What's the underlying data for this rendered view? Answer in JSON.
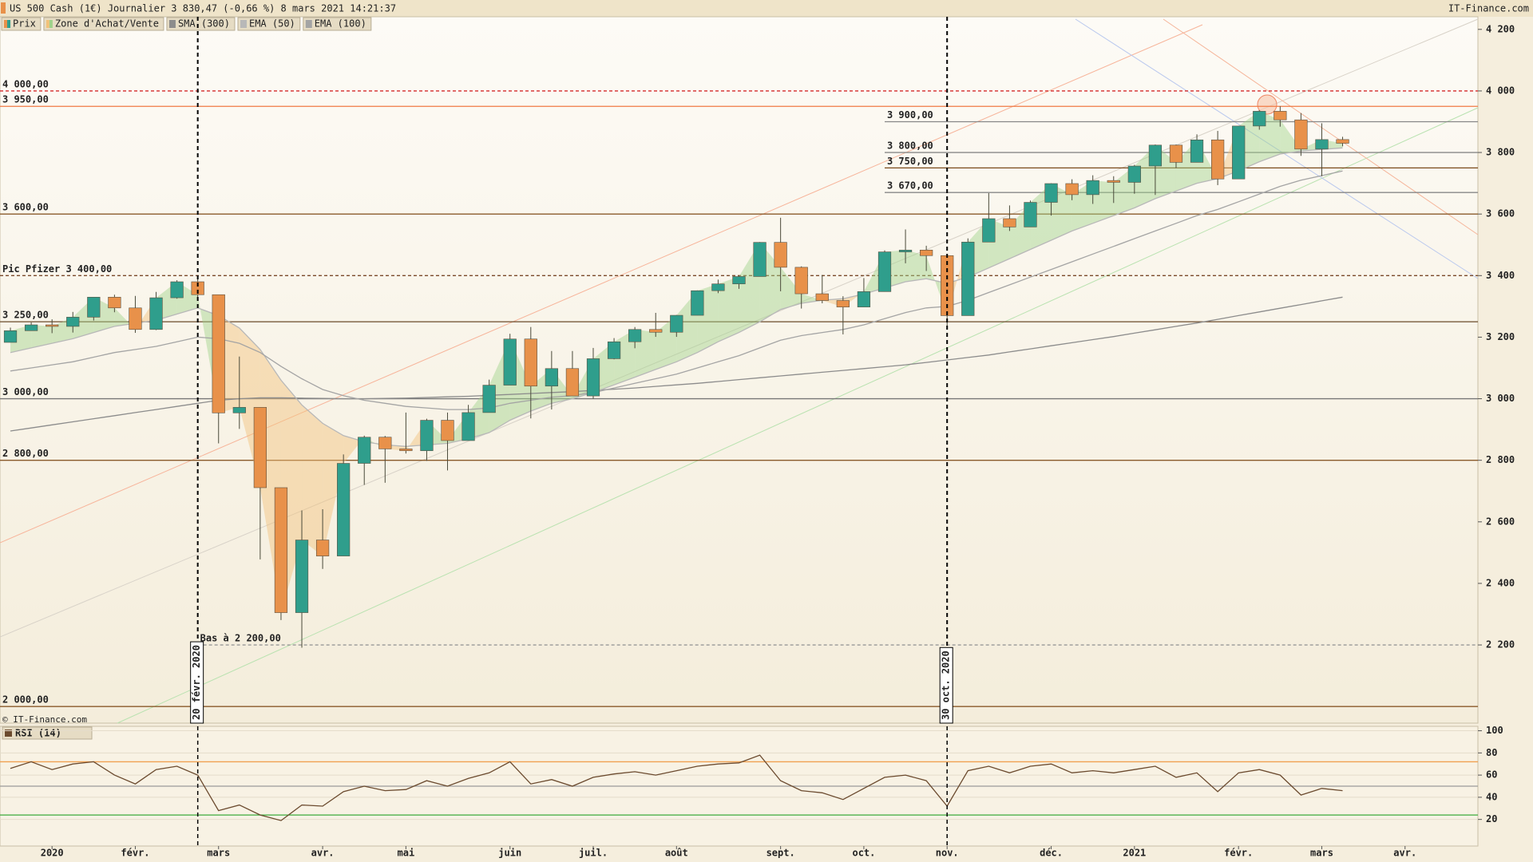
{
  "chart_data": {
    "type": "candlestick",
    "title": "US 500 Cash (1€) Journalier 3 830,47 (-0,66 %) 8 mars 2021 14:21:37",
    "source": "IT-Finance.com",
    "copyright": "© IT-Finance.com",
    "categories": [
      null,
      null,
      "2020",
      null,
      null,
      null,
      "févr.",
      null,
      null,
      null,
      "mars",
      null,
      null,
      null,
      null,
      "avr.",
      null,
      null,
      null,
      "mai",
      null,
      null,
      null,
      null,
      "juin",
      null,
      null,
      null,
      "juil.",
      null,
      null,
      null,
      "août",
      null,
      null,
      null,
      null,
      "sept.",
      null,
      null,
      null,
      "oct.",
      null,
      null,
      null,
      "nov.",
      null,
      null,
      null,
      null,
      "déc.",
      null,
      null,
      null,
      "2021",
      null,
      null,
      null,
      null,
      "févr.",
      null,
      null,
      null,
      "mars",
      null,
      null,
      null,
      "avr.",
      null,
      null,
      null
    ],
    "series": [
      {
        "name": "Prix",
        "up_color": "#2f9e8c",
        "down_color": "#e8914a",
        "open": [
          3183,
          3221,
          3240,
          3235,
          3265,
          3330,
          3295,
          3225,
          3328,
          3380,
          3338,
          2954,
          2972,
          2711,
          2305,
          2541,
          2489,
          2790,
          2875,
          2837,
          2831,
          2930,
          2864,
          2955,
          3044,
          3194,
          3041,
          3098,
          3009,
          3130,
          3185,
          3225,
          3216,
          3271,
          3351,
          3373,
          3397,
          3508,
          3427,
          3341,
          3319,
          3298,
          3348,
          3477,
          3483,
          3465,
          3270,
          3509,
          3585,
          3558,
          3638,
          3699,
          3663,
          3709,
          3703,
          3756,
          3824,
          3768,
          3841,
          3714,
          3886,
          3934,
          3906,
          3811,
          3842,
          null,
          null,
          null,
          null,
          null,
          null
        ],
        "high": [
          3231,
          3248,
          3258,
          3282,
          3330,
          3338,
          3334,
          3347,
          3385,
          3394,
          3338,
          3137,
          2972,
          2711,
          2637,
          2641,
          2819,
          2880,
          2879,
          2955,
          2935,
          2955,
          2980,
          3062,
          3211,
          3233,
          3155,
          3155,
          3165,
          3197,
          3233,
          3279,
          3272,
          3352,
          3387,
          3399,
          3509,
          3588,
          3430,
          3402,
          3333,
          3392,
          3482,
          3550,
          3497,
          3465,
          3521,
          3668,
          3628,
          3644,
          3700,
          3713,
          3726,
          3723,
          3760,
          3826,
          3826,
          3859,
          3870,
          3887,
          3937,
          3950,
          3928,
          3895,
          3851,
          null,
          null,
          null,
          null,
          null,
          null
        ],
        "low": [
          3183,
          3221,
          3213,
          3215,
          3254,
          3281,
          3214,
          3223,
          3325,
          3328,
          2855,
          2902,
          2478,
          2281,
          2191,
          2447,
          2489,
          2720,
          2727,
          2822,
          2798,
          2767,
          2864,
          2955,
          3044,
          2936,
          2965,
          3009,
          3000,
          3128,
          3164,
          3201,
          3201,
          3271,
          3343,
          3357,
          3397,
          3349,
          3293,
          3310,
          3209,
          3298,
          3348,
          3440,
          3415,
          3234,
          3270,
          3509,
          3545,
          3558,
          3595,
          3645,
          3633,
          3636,
          3666,
          3662,
          3750,
          3768,
          3694,
          3714,
          3874,
          3884,
          3789,
          3723,
          3820,
          null,
          null,
          null,
          null,
          null,
          null
        ],
        "close": [
          3221,
          3240,
          3235,
          3265,
          3330,
          3295,
          3225,
          3328,
          3380,
          3338,
          2954,
          2972,
          2711,
          2305,
          2541,
          2489,
          2790,
          2875,
          2837,
          2831,
          2930,
          2864,
          2955,
          3044,
          3194,
          3041,
          3098,
          3009,
          3130,
          3185,
          3225,
          3216,
          3271,
          3351,
          3373,
          3397,
          3508,
          3427,
          3341,
          3319,
          3298,
          3348,
          3477,
          3483,
          3465,
          3270,
          3509,
          3585,
          3558,
          3638,
          3699,
          3663,
          3709,
          3703,
          3756,
          3824,
          3768,
          3841,
          3714,
          3886,
          3934,
          3906,
          3811,
          3842,
          3830,
          null,
          null,
          null,
          null,
          null,
          null
        ]
      },
      {
        "name": "SMA (300)",
        "color": "#8c8c8c",
        "values": [
          2895,
          2905,
          2915,
          2925,
          2935,
          2945,
          2955,
          2965,
          2975,
          2985,
          2995,
          3000,
          3003,
          3003,
          3002,
          3001,
          3000,
          3000,
          3001,
          3002,
          3004,
          3006,
          3008,
          3011,
          3014,
          3017,
          3020,
          3023,
          3027,
          3031,
          3035,
          3040,
          3045,
          3050,
          3056,
          3062,
          3068,
          3074,
          3080,
          3086,
          3092,
          3098,
          3104,
          3110,
          3118,
          3126,
          3134,
          3142,
          3152,
          3162,
          3172,
          3182,
          3192,
          3202,
          3213,
          3224,
          3235,
          3246,
          3258,
          3270,
          3282,
          3294,
          3306,
          3318,
          3330,
          null,
          null,
          null,
          null,
          null,
          null
        ]
      },
      {
        "name": "EMA (50)",
        "color": "#b8b8b8",
        "values": [
          3150,
          3165,
          3180,
          3195,
          3215,
          3235,
          3245,
          3255,
          3275,
          3295,
          3270,
          3230,
          3160,
          3060,
          2980,
          2920,
          2880,
          2860,
          2850,
          2845,
          2850,
          2855,
          2870,
          2890,
          2930,
          2960,
          2985,
          3000,
          3020,
          3045,
          3070,
          3095,
          3120,
          3150,
          3185,
          3215,
          3250,
          3290,
          3310,
          3320,
          3325,
          3340,
          3360,
          3380,
          3390,
          3375,
          3395,
          3425,
          3455,
          3485,
          3515,
          3545,
          3570,
          3595,
          3620,
          3650,
          3675,
          3700,
          3715,
          3740,
          3770,
          3795,
          3805,
          3810,
          3815,
          null,
          null,
          null,
          null,
          null,
          null
        ]
      },
      {
        "name": "EMA (100)",
        "color": "#a4a4a4",
        "values": [
          3090,
          3100,
          3110,
          3120,
          3135,
          3150,
          3160,
          3170,
          3185,
          3200,
          3195,
          3180,
          3150,
          3105,
          3065,
          3030,
          3010,
          2995,
          2985,
          2975,
          2970,
          2965,
          2965,
          2970,
          2985,
          2995,
          3005,
          3010,
          3020,
          3035,
          3050,
          3065,
          3080,
          3100,
          3120,
          3140,
          3165,
          3190,
          3205,
          3215,
          3225,
          3240,
          3260,
          3280,
          3295,
          3300,
          3320,
          3345,
          3370,
          3395,
          3420,
          3445,
          3470,
          3495,
          3520,
          3545,
          3570,
          3595,
          3615,
          3640,
          3665,
          3690,
          3710,
          3725,
          3740,
          null,
          null,
          null,
          null,
          null,
          null
        ]
      }
    ],
    "zone": {
      "name": "Zone d'Achat/Vente",
      "up_color": "#9fd28a",
      "down_color": "#f2c27a"
    },
    "ylim": [
      1946,
      4241
    ],
    "yticks": [
      {
        "value": 2200,
        "label": "2 200"
      },
      {
        "value": 2400,
        "label": "2 400"
      },
      {
        "value": 2600,
        "label": "2 600"
      },
      {
        "value": 2800,
        "label": "2 800"
      },
      {
        "value": 3000,
        "label": "3 000"
      },
      {
        "value": 3200,
        "label": "3 200"
      },
      {
        "value": 3400,
        "label": "3 400"
      },
      {
        "value": 3600,
        "label": "3 600"
      },
      {
        "value": 3800,
        "label": "3 800"
      },
      {
        "value": 4000,
        "label": "4 000"
      },
      {
        "value": 4200,
        "label": "4 200"
      }
    ],
    "levels": [
      {
        "value": 4000,
        "label": "4 000,00",
        "color": "#d42a2a",
        "dash": true
      },
      {
        "value": 3950,
        "label": "3 950,00",
        "color": "#f07a45"
      },
      {
        "value": 3900,
        "label": "3 900,00",
        "color": "#888888",
        "from": 42
      },
      {
        "value": 3800,
        "label": "3 800,00",
        "color": "#888888",
        "from": 42
      },
      {
        "value": 3750,
        "label": "3 750,00",
        "color": "#7a4a1a",
        "from": 42
      },
      {
        "value": 3670,
        "label": "3 670,00",
        "color": "#888888",
        "from": 42
      },
      {
        "value": 3600,
        "label": "3 600,00",
        "color": "#8a5a2a"
      },
      {
        "value": 3400,
        "label": "Pic Pfizer 3 400,00",
        "color": "#7a4a2a",
        "dash": true
      },
      {
        "value": 3250,
        "label": "3 250,00",
        "color": "#6a4a2a"
      },
      {
        "value": 3000,
        "label": "3 000,00",
        "color": "#777777"
      },
      {
        "value": 2800,
        "label": "2 800,00",
        "color": "#8a5a2a"
      },
      {
        "value": 2200,
        "label": "Bas à 2 200,00",
        "color": "#999999",
        "dash": true,
        "from": 9
      },
      {
        "value": 2000,
        "label": "2 000,00",
        "color": "#8a5a2a"
      }
    ],
    "markers": [
      {
        "index": 9,
        "label": "20 févr. 2020"
      },
      {
        "index": 45,
        "label": "30 oct. 2020"
      }
    ],
    "rsi": {
      "title": "RSI (14)",
      "color": "#6b4a2e",
      "ylim": [
        -4,
        104
      ],
      "yticks": [
        20,
        40,
        60,
        80,
        100
      ],
      "levels": [
        {
          "value": 72,
          "color": "#f0a050"
        },
        {
          "value": 50,
          "color": "#9a9a9a"
        },
        {
          "value": 24,
          "color": "#3cab3c"
        }
      ],
      "values": [
        66,
        72,
        65,
        70,
        72,
        60,
        52,
        65,
        68,
        60,
        28,
        33,
        24,
        19,
        33,
        32,
        45,
        50,
        46,
        47,
        55,
        50,
        57,
        62,
        72,
        52,
        56,
        50,
        58,
        61,
        63,
        60,
        64,
        68,
        70,
        71,
        78,
        55,
        46,
        44,
        38,
        48,
        58,
        60,
        55,
        32,
        64,
        68,
        62,
        68,
        70,
        62,
        64,
        62,
        65,
        68,
        58,
        62,
        45,
        62,
        65,
        60,
        42,
        48,
        46,
        null,
        null,
        null,
        null,
        null,
        null
      ]
    }
  }
}
